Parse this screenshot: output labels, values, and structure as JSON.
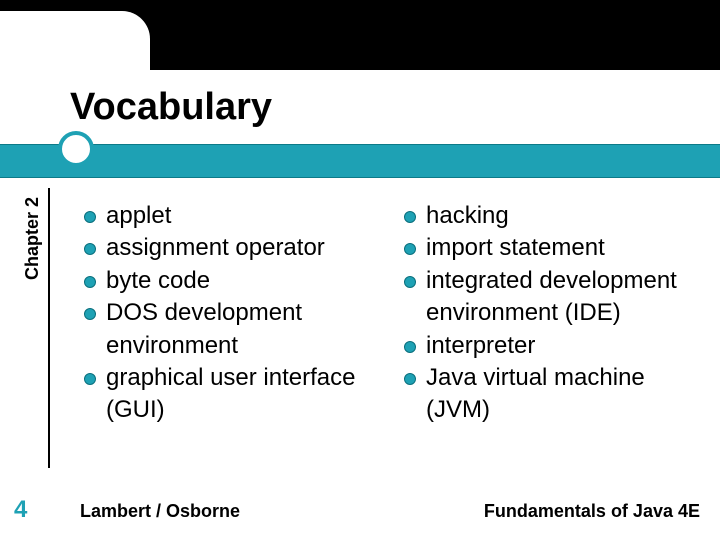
{
  "title": "Vocabulary",
  "chapter_label": "Chapter 2",
  "columns": {
    "left": [
      "applet",
      "assignment operator",
      "byte code",
      "DOS development environment",
      "graphical user interface (GUI)"
    ],
    "right": [
      "hacking",
      "import statement",
      "integrated development environment (IDE)",
      "interpreter",
      "Java virtual machine (JVM)"
    ]
  },
  "footer": {
    "page_number": "4",
    "left": "Lambert / Osborne",
    "right": "Fundamentals of Java 4E"
  },
  "style": {
    "background_color": "#ffffff",
    "topbar_color": "#000000",
    "accent_color": "#1ea1b4",
    "accent_border": "#0d7a88",
    "bullet_color": "#1ea1b4",
    "title_fontsize": 38,
    "body_fontsize": 24,
    "chapter_fontsize": 18,
    "footer_fontsize": 18,
    "pagenum_fontsize": 24
  }
}
